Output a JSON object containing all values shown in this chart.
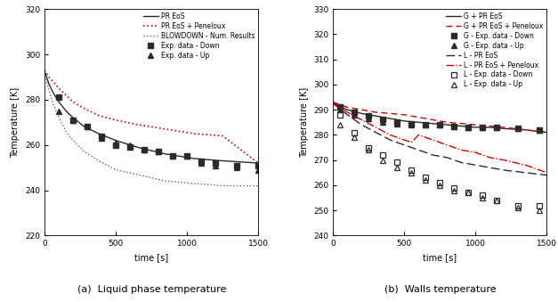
{
  "fig_a": {
    "caption": "(a)  Liquid phase temperature",
    "xlabel": "time [s]",
    "ylabel": "Temperature [K]",
    "xlim": [
      0,
      1500
    ],
    "ylim": [
      220,
      320
    ],
    "yticks": [
      220,
      240,
      260,
      280,
      300,
      320
    ],
    "xticks": [
      0,
      500,
      1000,
      1500
    ],
    "pr_eos": {
      "t": [
        0,
        30,
        60,
        100,
        150,
        200,
        280,
        380,
        500,
        650,
        850,
        1050,
        1250,
        1500
      ],
      "T": [
        292.5,
        287,
        283,
        279,
        275,
        272,
        268,
        265,
        262,
        259,
        256,
        254,
        253,
        252
      ]
    },
    "pr_eos_peneloux": {
      "t": [
        0,
        30,
        60,
        100,
        150,
        200,
        280,
        380,
        500,
        650,
        850,
        1050,
        1250,
        1500
      ],
      "T": [
        293,
        290,
        288,
        285,
        282,
        279,
        276,
        273,
        271,
        269,
        267,
        265,
        264,
        252
      ]
    },
    "blowdown": {
      "t": [
        0,
        30,
        60,
        100,
        150,
        200,
        280,
        380,
        500,
        650,
        850,
        1050,
        1250,
        1500
      ],
      "T": [
        292,
        284,
        278,
        272,
        266,
        262,
        257,
        253,
        249,
        247,
        244,
        243,
        242,
        242
      ]
    },
    "exp_down": {
      "t": [
        100,
        200,
        300,
        400,
        500,
        600,
        700,
        800,
        900,
        1000,
        1100,
        1200,
        1350,
        1500
      ],
      "T": [
        281,
        271,
        268,
        264,
        260,
        259,
        258,
        257,
        255,
        255,
        253,
        252,
        251,
        251
      ]
    },
    "exp_up": {
      "t": [
        100,
        200,
        300,
        400,
        500,
        600,
        700,
        800,
        900,
        1000,
        1100,
        1200,
        1350,
        1500
      ],
      "T": [
        275,
        271,
        268,
        263,
        261,
        260,
        258,
        257,
        255,
        255,
        252,
        251,
        250,
        249
      ]
    }
  },
  "fig_b": {
    "caption": "(b)  Walls temperature",
    "xlabel": "time [s]",
    "ylabel": "Temperature [K]",
    "xlim": [
      0,
      1500
    ],
    "ylim": [
      240,
      330
    ],
    "yticks": [
      240,
      250,
      260,
      270,
      280,
      290,
      300,
      310,
      320,
      330
    ],
    "xticks": [
      0,
      500,
      1000,
      1500
    ],
    "g_pr_eos": {
      "t": [
        0,
        100,
        200,
        300,
        400,
        500,
        600,
        700,
        800,
        900,
        1000,
        1100,
        1200,
        1350,
        1500
      ],
      "T": [
        292.5,
        290,
        288.5,
        287.5,
        286.5,
        285.5,
        285,
        284.5,
        284,
        283.5,
        283,
        283,
        282.5,
        282,
        281
      ]
    },
    "g_pr_eos_peneloux": {
      "t": [
        0,
        100,
        200,
        300,
        400,
        500,
        600,
        700,
        800,
        900,
        1000,
        1100,
        1200,
        1350,
        1500
      ],
      "T": [
        293,
        291,
        290,
        289,
        288.5,
        288,
        287,
        286,
        285,
        284.5,
        284,
        283.5,
        283,
        282,
        281
      ]
    },
    "l_pr_eos": {
      "t": [
        0,
        100,
        200,
        300,
        400,
        500,
        600,
        700,
        800,
        900,
        1000,
        1100,
        1200,
        1350,
        1500
      ],
      "T": [
        292.5,
        288,
        284,
        281,
        278,
        276,
        274,
        272,
        271,
        269,
        268,
        267,
        266,
        265,
        264
      ]
    },
    "l_pr_eos_peneloux": {
      "t": [
        0,
        100,
        200,
        300,
        400,
        500,
        550,
        600,
        650,
        700,
        800,
        900,
        1000,
        1100,
        1200,
        1350,
        1500
      ],
      "T": [
        293,
        289,
        286,
        283,
        280,
        278,
        277,
        280,
        279,
        278,
        276,
        274,
        273,
        271,
        270,
        268,
        265
      ]
    },
    "g_exp_down": {
      "t": [
        50,
        150,
        250,
        350,
        450,
        550,
        650,
        750,
        850,
        950,
        1050,
        1150,
        1300,
        1450
      ],
      "T": [
        291,
        289,
        287.5,
        286,
        285,
        284.5,
        284,
        284,
        283.5,
        283,
        283,
        283,
        282.5,
        282
      ]
    },
    "g_exp_up": {
      "t": [
        50,
        150,
        250,
        350,
        450,
        550,
        650,
        750,
        850,
        950,
        1050,
        1150,
        1300,
        1450
      ],
      "T": [
        290,
        288,
        286.5,
        285,
        284.5,
        284,
        284,
        284,
        283.5,
        283,
        283,
        283,
        282.5,
        282
      ]
    },
    "l_exp_down": {
      "t": [
        50,
        150,
        250,
        350,
        450,
        550,
        650,
        750,
        850,
        950,
        1050,
        1150,
        1300,
        1450
      ],
      "T": [
        288,
        281,
        275,
        272,
        269,
        266,
        263,
        261,
        259,
        257,
        256,
        254,
        252,
        252
      ]
    },
    "l_exp_up": {
      "t": [
        50,
        150,
        250,
        350,
        450,
        550,
        650,
        750,
        850,
        950,
        1050,
        1150,
        1300,
        1450
      ],
      "T": [
        284,
        279,
        274,
        270,
        267,
        265,
        262,
        260,
        258,
        257,
        255,
        254,
        251,
        250
      ]
    }
  },
  "colors": {
    "black": "#2a2a2a",
    "red": "#cc0000",
    "blue": "#5555bb"
  }
}
